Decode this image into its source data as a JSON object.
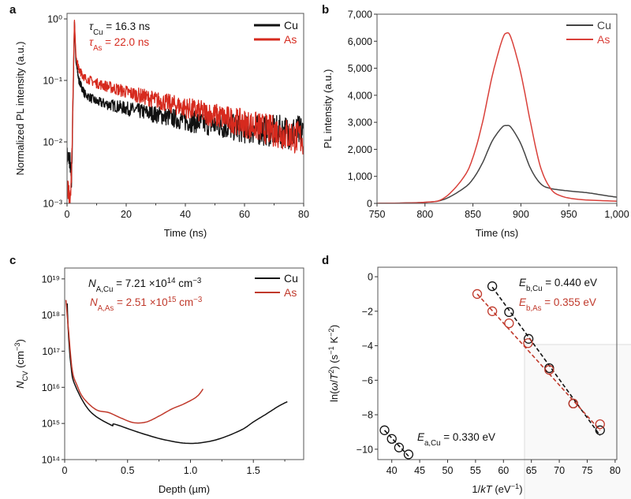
{
  "chart_data": [
    {
      "panel_label": "a",
      "type": "line",
      "xlabel": [
        {
          "t": "Time (ns)"
        }
      ],
      "ylabel": [
        {
          "t": "Normalized PL intensity (a.u.)"
        }
      ],
      "xlim": [
        0,
        80
      ],
      "ylim": [
        0.001,
        1.23
      ],
      "yscale": "log",
      "xticks": [
        0,
        20,
        40,
        60,
        80
      ],
      "xtick_labels": [
        "0",
        "20",
        "40",
        "60",
        "80"
      ],
      "xminor": [
        10,
        30,
        50,
        70
      ],
      "yticks": [
        1,
        0.1,
        0.01,
        0.001
      ],
      "ytick_labels": [
        "10⁰",
        "10⁻¹",
        "10⁻²",
        "10⁻³"
      ],
      "legend": "top-right",
      "grid": false,
      "series": [
        {
          "name": "Cu",
          "color": "#111111",
          "x": [
            0,
            1,
            1.5,
            2.5,
            3,
            4,
            6,
            10,
            20,
            30,
            40,
            50,
            60,
            70,
            80
          ],
          "y": [
            0.006,
            0.005,
            0.002,
            0.9,
            0.2,
            0.1,
            0.06,
            0.045,
            0.035,
            0.028,
            0.022,
            0.019,
            0.016,
            0.015,
            0.014
          ]
        },
        {
          "name": "As",
          "color": "#d62a1e",
          "x": [
            0,
            1,
            1.5,
            2.5,
            3,
            4,
            6,
            10,
            20,
            30,
            40,
            50,
            60,
            70,
            80
          ],
          "y": [
            0.002,
            0.0012,
            0.003,
            0.95,
            0.25,
            0.15,
            0.11,
            0.09,
            0.065,
            0.048,
            0.036,
            0.027,
            0.02,
            0.015,
            0.011
          ]
        }
      ],
      "annotations": [
        {
          "color": "#111111",
          "parts": [
            {
              "t": "τ",
              "i": true
            },
            {
              "t": "Cu",
              "s": "sub"
            },
            {
              "t": " = 16.3 ns"
            }
          ]
        },
        {
          "color": "#d62a1e",
          "parts": [
            {
              "t": "τ",
              "i": true
            },
            {
              "t": "As",
              "s": "sub"
            },
            {
              "t": " = 22.0 ns"
            }
          ]
        }
      ]
    },
    {
      "panel_label": "b",
      "type": "line",
      "xlabel": [
        {
          "t": "Time (ns)"
        }
      ],
      "ylabel": [
        {
          "t": "PL intensity (a.u.)"
        }
      ],
      "xlim": [
        750,
        1000
      ],
      "ylim": [
        0,
        7000
      ],
      "yscale": "linear",
      "xticks": [
        750,
        800,
        850,
        900,
        950,
        1000
      ],
      "xtick_labels": [
        "750",
        "800",
        "850",
        "900",
        "950",
        "1,000"
      ],
      "yticks": [
        0,
        1000,
        2000,
        3000,
        4000,
        5000,
        6000,
        7000
      ],
      "ytick_labels": [
        "0",
        "1,000",
        "2,000",
        "3,000",
        "4,000",
        "5,000",
        "6,000",
        "7,000"
      ],
      "legend": "top-right",
      "grid": false,
      "series": [
        {
          "name": "Cu",
          "color": "#444444",
          "x": [
            750,
            800,
            820,
            840,
            850,
            860,
            870,
            880,
            885,
            890,
            900,
            910,
            920,
            930,
            950,
            970,
            990,
            1000
          ],
          "y": [
            0,
            40,
            150,
            550,
            900,
            1500,
            2300,
            2800,
            2880,
            2800,
            2200,
            1300,
            750,
            560,
            460,
            390,
            280,
            230
          ]
        },
        {
          "name": "As",
          "color": "#d9403a",
          "x": [
            750,
            800,
            820,
            840,
            850,
            860,
            870,
            880,
            885,
            890,
            900,
            910,
            920,
            930,
            940,
            960,
            1000
          ],
          "y": [
            0,
            40,
            200,
            950,
            1700,
            3000,
            4700,
            6000,
            6300,
            6100,
            4800,
            3000,
            1400,
            600,
            300,
            150,
            80
          ]
        }
      ],
      "annotations": []
    },
    {
      "panel_label": "c",
      "type": "line",
      "xlabel": [
        {
          "t": "Depth (µm)"
        }
      ],
      "ylabel": [
        {
          "t": "N",
          "i": true
        },
        {
          "t": "CV",
          "s": "sub"
        },
        {
          "t": " (cm"
        },
        {
          "t": "−3",
          "s": "sup"
        },
        {
          "t": ")"
        }
      ],
      "xlim": [
        0,
        1.9
      ],
      "ylim": [
        100000000000000.0,
        2e+19
      ],
      "yscale": "log",
      "xticks": [
        0,
        0.5,
        1.0,
        1.5
      ],
      "xtick_labels": [
        "0",
        "0.5",
        "1.0",
        "1.5"
      ],
      "xminor": [
        0.25,
        0.75,
        1.25,
        1.75
      ],
      "yticks": [
        100000000000000.0,
        1000000000000000.0,
        1e+16,
        1e+17,
        1e+18,
        1e+19
      ],
      "ytick_labels": [
        "10¹⁴",
        "10¹⁵",
        "10¹⁶",
        "10¹⁷",
        "10¹⁸",
        "10¹⁹"
      ],
      "legend": "top-right",
      "grid": false,
      "series": [
        {
          "name": "Cu",
          "color": "#111111",
          "x": [
            0.02,
            0.03,
            0.05,
            0.08,
            0.2,
            0.37,
            0.4,
            0.6,
            0.8,
            1.0,
            1.2,
            1.4,
            1.5,
            1.6,
            1.7,
            1.77
          ],
          "y": [
            2.1e+18,
            3e+17,
            4e+16,
            1.2e+16,
            2200000000000000.0,
            900000000000000.0,
            950000000000000.0,
            550000000000000.0,
            350000000000000.0,
            280000000000000.0,
            350000000000000.0,
            650000000000000.0,
            1100000000000000.0,
            1800000000000000.0,
            3000000000000000.0,
            4000000000000000.0
          ]
        },
        {
          "name": "As",
          "color": "#c0392b",
          "x": [
            0.01,
            0.03,
            0.06,
            0.1,
            0.15,
            0.25,
            0.35,
            0.45,
            0.55,
            0.65,
            0.75,
            0.85,
            0.95,
            1.05,
            1.1
          ],
          "y": [
            2.6e+18,
            4e+17,
            3e+16,
            1.1e+16,
            5000000000000000.0,
            2400000000000000.0,
            2000000000000000.0,
            1400000000000000.0,
            1050000000000000.0,
            1100000000000000.0,
            1600000000000000.0,
            2500000000000000.0,
            3500000000000000.0,
            5500000000000000.0,
            9000000000000000.0
          ]
        }
      ],
      "annotations": [
        {
          "color": "#111111",
          "parts": [
            {
              "t": "N",
              "i": true
            },
            {
              "t": "A,Cu",
              "s": "sub"
            },
            {
              "t": " = 7.21 ×10"
            },
            {
              "t": "14",
              "s": "sup"
            },
            {
              "t": " cm"
            },
            {
              "t": "−3",
              "s": "sup"
            }
          ]
        },
        {
          "color": "#c0392b",
          "parts": [
            {
              "t": "N",
              "i": true
            },
            {
              "t": "A,As",
              "s": "sub"
            },
            {
              "t": " = 2.51 ×10"
            },
            {
              "t": "15",
              "s": "sup"
            },
            {
              "t": " cm"
            },
            {
              "t": "−3",
              "s": "sup"
            }
          ]
        }
      ]
    },
    {
      "panel_label": "d",
      "type": "scatter",
      "xlabel": [
        {
          "t": "1/"
        },
        {
          "t": "kT",
          "i": true
        },
        {
          "t": " (eV"
        },
        {
          "t": "−1",
          "s": "sup"
        },
        {
          "t": ")"
        }
      ],
      "ylabel": [
        {
          "t": "ln("
        },
        {
          "t": "ω",
          "i": true
        },
        {
          "t": "/"
        },
        {
          "t": "T",
          "i": true
        },
        {
          "t": "2",
          "s": "sup"
        },
        {
          "t": ") (s"
        },
        {
          "t": "−1",
          "s": "sup"
        },
        {
          "t": " K"
        },
        {
          "t": "−2",
          "s": "sup"
        },
        {
          "t": ")"
        }
      ],
      "xlim": [
        37.5,
        80.3
      ],
      "ylim": [
        -10.6,
        0.55
      ],
      "yscale": "linear",
      "xticks": [
        40,
        45,
        50,
        55,
        60,
        65,
        70,
        75,
        80
      ],
      "xtick_labels": [
        "40",
        "45",
        "50",
        "55",
        "60",
        "65",
        "70",
        "75",
        "80"
      ],
      "yticks": [
        0,
        -2,
        -4,
        -6,
        -8,
        -10
      ],
      "ytick_labels": [
        "0",
        "−2",
        "−4",
        "−6",
        "−8",
        "−10"
      ],
      "grid": false,
      "series": [
        {
          "name": "Cu",
          "color": "#111111",
          "x": [
            38.7,
            40,
            41.3,
            43,
            58,
            61,
            64.5,
            68.2,
            72.5,
            77.3
          ],
          "y": [
            -8.9,
            -9.4,
            -9.9,
            -10.3,
            -0.55,
            -2.05,
            -3.6,
            -5.3,
            -7.35,
            -8.9
          ]
        },
        {
          "name": "As",
          "color": "#c0392b",
          "x": [
            55.3,
            58,
            61,
            64.4,
            68.2,
            72.5,
            77.3
          ],
          "y": [
            -1.0,
            -2.0,
            -2.7,
            -3.85,
            -5.4,
            -7.35,
            -8.55
          ]
        }
      ],
      "fits": [
        {
          "color": "#111111",
          "x": [
            38.7,
            43
          ],
          "y": [
            -8.9,
            -10.4
          ]
        },
        {
          "color": "#111111",
          "x": [
            58,
            77.3
          ],
          "y": [
            -0.6,
            -9.2
          ]
        },
        {
          "color": "#c0392b",
          "x": [
            55.3,
            77.3
          ],
          "y": [
            -1.0,
            -8.9
          ]
        }
      ],
      "annotations": [
        {
          "color": "#111111",
          "parts": [
            {
              "t": "E",
              "i": true
            },
            {
              "t": "b,Cu",
              "s": "sub"
            },
            {
              "t": " = 0.440 eV"
            }
          ]
        },
        {
          "color": "#c0392b",
          "parts": [
            {
              "t": "E",
              "i": true
            },
            {
              "t": "b,As",
              "s": "sub"
            },
            {
              "t": " = 0.355 eV"
            }
          ]
        },
        {
          "color": "#111111",
          "parts": [
            {
              "t": "E",
              "i": true
            },
            {
              "t": "a,Cu",
              "s": "sub"
            },
            {
              "t": " = 0.330 eV"
            }
          ]
        }
      ]
    }
  ]
}
